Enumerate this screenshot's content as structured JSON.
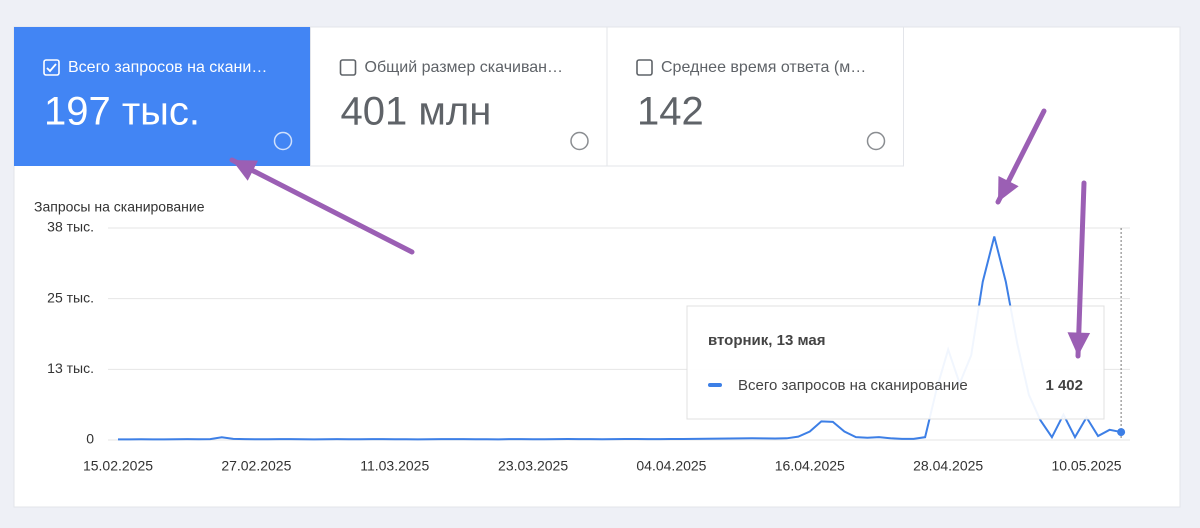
{
  "cards": [
    {
      "label": "Всего запросов на скани…",
      "value": "197 тыс.",
      "selected": true
    },
    {
      "label": "Общий размер скачиван…",
      "value": "401 млн",
      "selected": false
    },
    {
      "label": "Среднее время ответа (м…",
      "value": "142",
      "selected": false
    }
  ],
  "chart_data": {
    "type": "line",
    "y_label": "Запросы на сканирование",
    "x": [
      "15.02.2025",
      "16.02.2025",
      "17.02.2025",
      "18.02.2025",
      "19.02.2025",
      "20.02.2025",
      "21.02.2025",
      "22.02.2025",
      "23.02.2025",
      "24.02.2025",
      "25.02.2025",
      "26.02.2025",
      "27.02.2025",
      "28.02.2025",
      "01.03.2025",
      "02.03.2025",
      "03.03.2025",
      "04.03.2025",
      "05.03.2025",
      "06.03.2025",
      "07.03.2025",
      "08.03.2025",
      "09.03.2025",
      "10.03.2025",
      "11.03.2025",
      "12.03.2025",
      "13.03.2025",
      "14.03.2025",
      "15.03.2025",
      "16.03.2025",
      "17.03.2025",
      "18.03.2025",
      "19.03.2025",
      "20.03.2025",
      "21.03.2025",
      "22.03.2025",
      "23.03.2025",
      "24.03.2025",
      "25.03.2025",
      "26.03.2025",
      "27.03.2025",
      "28.03.2025",
      "29.03.2025",
      "30.03.2025",
      "31.03.2025",
      "01.04.2025",
      "02.04.2025",
      "03.04.2025",
      "04.04.2025",
      "05.04.2025",
      "06.04.2025",
      "07.04.2025",
      "08.04.2025",
      "09.04.2025",
      "10.04.2025",
      "11.04.2025",
      "12.04.2025",
      "13.04.2025",
      "14.04.2025",
      "15.04.2025",
      "16.04.2025",
      "17.04.2025",
      "18.04.2025",
      "19.04.2025",
      "20.04.2025",
      "21.04.2025",
      "22.04.2025",
      "23.04.2025",
      "24.04.2025",
      "25.04.2025",
      "26.04.2025",
      "27.04.2025",
      "28.04.2025",
      "29.04.2025",
      "30.04.2025",
      "01.05.2025",
      "02.05.2025",
      "03.05.2025",
      "04.05.2025",
      "05.05.2025",
      "06.05.2025",
      "07.05.2025",
      "08.05.2025",
      "09.05.2025",
      "10.05.2025",
      "11.05.2025",
      "12.05.2025",
      "13.05.2025"
    ],
    "xticks": [
      "15.02.2025",
      "27.02.2025",
      "11.03.2025",
      "23.03.2025",
      "04.04.2025",
      "16.04.2025",
      "28.04.2025",
      "10.05.2025"
    ],
    "series": [
      {
        "name": "Всего запросов на сканирование",
        "color": "#3d7fe6",
        "values": [
          120,
          110,
          130,
          120,
          100,
          140,
          150,
          130,
          160,
          480,
          200,
          150,
          140,
          130,
          160,
          150,
          140,
          120,
          130,
          150,
          140,
          130,
          150,
          160,
          140,
          130,
          120,
          140,
          150,
          160,
          150,
          140,
          130,
          120,
          150,
          160,
          140,
          130,
          150,
          170,
          160,
          150,
          140,
          160,
          180,
          170,
          160,
          150,
          170,
          180,
          200,
          220,
          250,
          260,
          280,
          300,
          280,
          270,
          300,
          600,
          1500,
          3300,
          3200,
          1500,
          500,
          400,
          500,
          300,
          200,
          200,
          500,
          9000,
          16000,
          10000,
          15000,
          28000,
          36000,
          28000,
          17000,
          8000,
          3500,
          500,
          4500,
          500,
          4000,
          700,
          1800,
          1402
        ]
      }
    ],
    "ylim": [
      0,
      37500
    ],
    "yticks": [
      0,
      {
        "value": 12500,
        "label": "13 тыс."
      },
      {
        "value": 25000,
        "label": "25 тыс."
      },
      {
        "value": 37500,
        "label": "38 тыс."
      }
    ],
    "grid": true,
    "tooltip": {
      "title": "вторник, 13 мая",
      "value_label": "1 402"
    }
  }
}
